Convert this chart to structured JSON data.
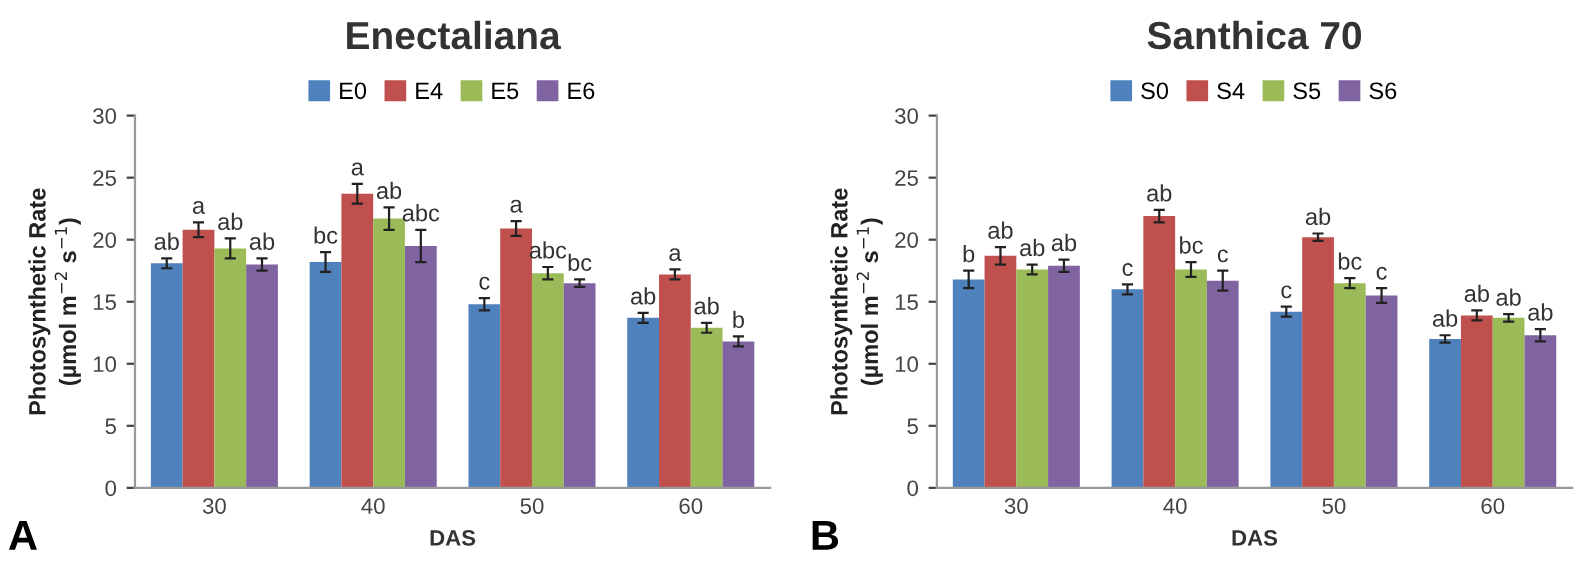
{
  "chart_data": [
    {
      "type": "bar",
      "title": "Enectaliana",
      "xlabel": "DAS",
      "ylabel": "Photosynthetic Rate\n(µmol m$^{−2}$ s$^{−1}$)",
      "categories": [
        "30",
        "40",
        "50",
        "60"
      ],
      "series": [
        {
          "name": "E0",
          "color": "#4f81bd",
          "values": [
            18.1,
            18.2,
            14.8,
            13.7
          ],
          "errors": [
            0.4,
            0.8,
            0.5,
            0.4
          ],
          "value_labels": [
            "ab",
            "bc",
            "c",
            "ab"
          ]
        },
        {
          "name": "E4",
          "color": "#c0504d",
          "values": [
            20.8,
            23.7,
            20.9,
            17.2
          ],
          "errors": [
            0.6,
            0.8,
            0.6,
            0.4
          ],
          "value_labels": [
            "a",
            "a",
            "a",
            "a"
          ]
        },
        {
          "name": "E5",
          "color": "#9bbb59",
          "values": [
            19.3,
            21.7,
            17.3,
            12.9
          ],
          "errors": [
            0.8,
            0.9,
            0.5,
            0.4
          ],
          "value_labels": [
            "ab",
            "ab",
            "abc",
            "ab"
          ]
        },
        {
          "name": "E6",
          "color": "#8064a2",
          "values": [
            18.0,
            19.5,
            16.5,
            11.8
          ],
          "errors": [
            0.5,
            1.3,
            0.3,
            0.4
          ],
          "value_labels": [
            "ab",
            "abc",
            "bc",
            "b"
          ]
        }
      ],
      "ylim": [
        0,
        30
      ],
      "yticks": [
        0,
        5,
        10,
        15,
        20,
        25,
        30
      ],
      "grid": false,
      "legend": "top",
      "annotations": [
        "A"
      ]
    },
    {
      "type": "bar",
      "title": "Santhica 70",
      "xlabel": "DAS",
      "ylabel": "Photosynthetic Rate\n(µmol m$^{−2}$ s$^{−1}$)",
      "categories": [
        "30",
        "40",
        "50",
        "60"
      ],
      "series": [
        {
          "name": "S0",
          "color": "#4f81bd",
          "values": [
            16.8,
            16.0,
            14.2,
            12.0
          ],
          "errors": [
            0.7,
            0.4,
            0.4,
            0.3
          ],
          "value_labels": [
            "b",
            "c",
            "c",
            "ab"
          ]
        },
        {
          "name": "S4",
          "color": "#c0504d",
          "values": [
            18.7,
            21.9,
            20.2,
            13.9
          ],
          "errors": [
            0.7,
            0.5,
            0.3,
            0.4
          ],
          "value_labels": [
            "ab",
            "ab",
            "ab",
            "ab"
          ]
        },
        {
          "name": "S5",
          "color": "#9bbb59",
          "values": [
            17.6,
            17.6,
            16.5,
            13.7
          ],
          "errors": [
            0.4,
            0.6,
            0.4,
            0.3
          ],
          "value_labels": [
            "ab",
            "bc",
            "bc",
            "ab"
          ]
        },
        {
          "name": "S6",
          "color": "#8064a2",
          "values": [
            17.9,
            16.7,
            15.5,
            12.3
          ],
          "errors": [
            0.5,
            0.8,
            0.6,
            0.5
          ],
          "value_labels": [
            "ab",
            "c",
            "c",
            "ab"
          ]
        }
      ],
      "ylim": [
        0,
        30
      ],
      "yticks": [
        0,
        5,
        10,
        15,
        20,
        25,
        30
      ],
      "grid": false,
      "legend": "top",
      "annotations": [
        "B"
      ]
    }
  ]
}
